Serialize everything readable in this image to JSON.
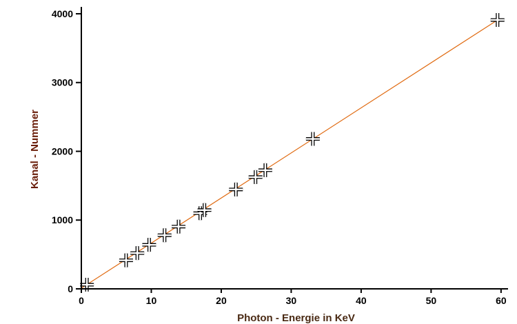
{
  "chart_data": {
    "type": "scatter",
    "title": "",
    "xlabel": "Photon - Energie in KeV",
    "ylabel": "Kanal - Nummer",
    "xlim": [
      0,
      61
    ],
    "ylim": [
      0,
      4100
    ],
    "xticks": [
      0,
      10,
      20,
      30,
      40,
      50,
      60
    ],
    "yticks": [
      0,
      1000,
      2000,
      3000,
      4000
    ],
    "grid": false,
    "legend": "none",
    "marker_color": "#000000",
    "fit_line_color": "#e06a10",
    "fit_line": {
      "x": [
        0,
        59.5
      ],
      "y": [
        10,
        3910
      ]
    },
    "points": [
      {
        "x": 0.8,
        "y": 60
      },
      {
        "x": 6.4,
        "y": 415
      },
      {
        "x": 8.0,
        "y": 520
      },
      {
        "x": 9.7,
        "y": 640
      },
      {
        "x": 11.9,
        "y": 780
      },
      {
        "x": 13.9,
        "y": 905
      },
      {
        "x": 17.0,
        "y": 1100
      },
      {
        "x": 17.6,
        "y": 1145
      },
      {
        "x": 22.1,
        "y": 1445
      },
      {
        "x": 24.9,
        "y": 1625
      },
      {
        "x": 26.3,
        "y": 1725
      },
      {
        "x": 33.1,
        "y": 2180
      },
      {
        "x": 59.5,
        "y": 3910
      }
    ]
  }
}
